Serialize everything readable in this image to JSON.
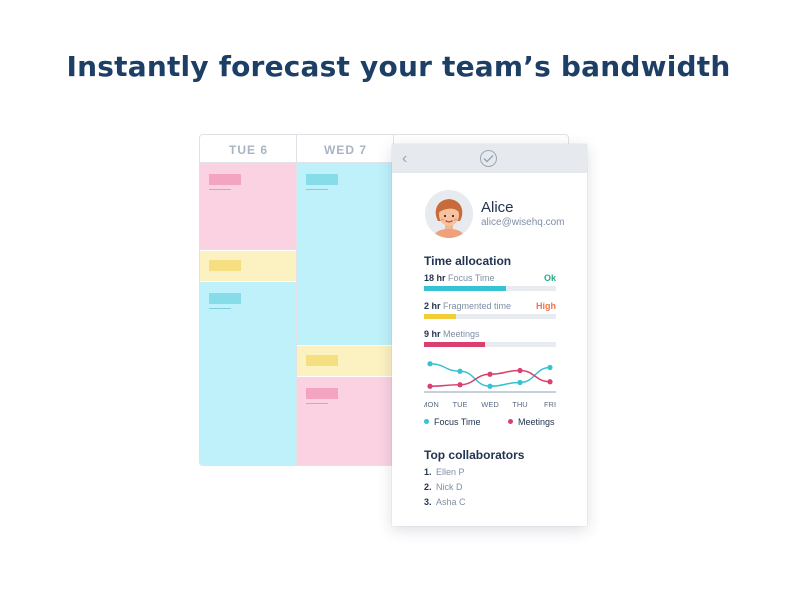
{
  "headline": "Instantly forecast your team’s bandwidth",
  "calendar": {
    "days": [
      "TUE 6",
      "WED 7"
    ]
  },
  "panel": {
    "user": {
      "name": "Alice",
      "email": "alice@wisehq.com"
    },
    "time_allocation": {
      "title": "Time allocation",
      "items": [
        {
          "hours": "18 hr",
          "label": "Focus Time",
          "status": "Ok",
          "status_color": "#1fae8a",
          "fill_percent": 62,
          "color": "#34c2d4"
        },
        {
          "hours": "2 hr",
          "label": "Fragmented time",
          "status": "High",
          "status_color": "#f0734a",
          "fill_percent": 24,
          "color": "#f2cd3a"
        },
        {
          "hours": "9 hr",
          "label": "Meetings",
          "status": "",
          "status_color": "#d9406f",
          "fill_percent": 46,
          "color": "#d9406f"
        }
      ]
    },
    "chart": {
      "days": [
        "MON",
        "TUE",
        "WED",
        "THU",
        "FRI"
      ],
      "legend": [
        "Focus Time",
        "Meetings"
      ],
      "colors": {
        "focus": "#34c2d4",
        "meetings": "#d9406f"
      }
    },
    "collaborators": {
      "title": "Top collaborators",
      "items": [
        {
          "num": "1.",
          "name": "Ellen P"
        },
        {
          "num": "2.",
          "name": "Nick D"
        },
        {
          "num": "3.",
          "name": "Asha C"
        }
      ]
    }
  },
  "chart_data": {
    "type": "line",
    "x": [
      "MON",
      "TUE",
      "WED",
      "THU",
      "FRI"
    ],
    "series": [
      {
        "name": "Focus Time",
        "values": [
          4,
          3,
          1,
          1.5,
          3.5
        ]
      },
      {
        "name": "Meetings",
        "values": [
          1,
          1.2,
          2.6,
          3.1,
          1.6
        ]
      }
    ]
  }
}
